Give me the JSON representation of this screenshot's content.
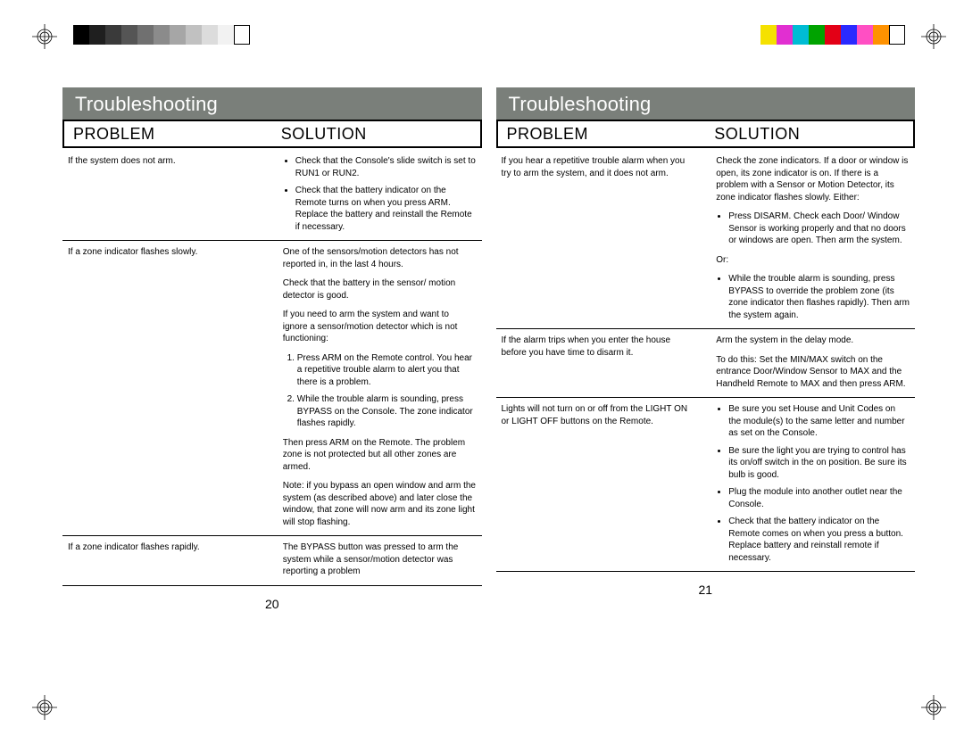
{
  "registration_mark": {
    "stroke": "#000000"
  },
  "grayscale_bar": [
    "#000000",
    "#1f1f1f",
    "#3a3a3a",
    "#555555",
    "#707070",
    "#8b8b8b",
    "#a6a6a6",
    "#c1c1c1",
    "#dcdcdc",
    "#f2f2f2",
    "#ffffff"
  ],
  "color_bar": [
    "#f5e100",
    "#e12fd1",
    "#00bcd4",
    "#00a300",
    "#e30016",
    "#2a2aff",
    "#ff4fc3",
    "#ff9200",
    "#ffffff"
  ],
  "pages": [
    {
      "section_title": "Troubleshooting",
      "col_problem": "PROBLEM",
      "col_solution": "SOLUTION",
      "page_number": "20",
      "rows": [
        {
          "problem": "If the system does not arm.",
          "solution_bullets": [
            "Check that the Console's slide switch is set to RUN1 or RUN2.",
            "Check that the battery indicator on the Remote turns on when you press ARM. Replace the battery and reinstall the Remote if necessary."
          ]
        },
        {
          "problem": "If a zone indicator flashes slowly.",
          "solution_paras": [
            "One of the sensors/motion detectors has not reported in, in the last 4 hours.",
            "Check that the battery in the sensor/ motion detector is good.",
            "If you need to arm the system and want to ignore a sensor/motion detector which is not functioning:"
          ],
          "solution_ol": [
            "Press ARM on the Remote control. You hear a repetitive trouble alarm to alert you that there is a problem.",
            "While the trouble alarm is sounding, press BYPASS on the Console. The zone indicator flashes rapidly."
          ],
          "solution_post_paras": [
            "Then press ARM on the Remote. The problem zone is not protected but all other zones are armed.",
            "Note: if you bypass an open window and arm the system (as described above) and later close the window, that zone will now arm and its zone light will stop flashing."
          ]
        },
        {
          "problem": "If a zone indicator flashes rapidly.",
          "solution_paras": [
            "The BYPASS button was pressed to arm the system while a sensor/motion detector was reporting a problem"
          ]
        }
      ]
    },
    {
      "section_title": "Troubleshooting",
      "col_problem": "PROBLEM",
      "col_solution": "SOLUTION",
      "page_number": "21",
      "rows": [
        {
          "problem": "If you hear a repetitive trouble alarm when you try to arm the system, and it does not arm.",
          "solution_paras": [
            "Check the zone indicators. If a door or window is open, its zone indicator is on. If there is a problem with a Sensor or Motion Detector, its zone indicator flashes slowly. Either:"
          ],
          "solution_bullets_a": [
            "Press DISARM. Check each Door/ Window Sensor is working properly and that no doors or windows are open. Then arm the system."
          ],
          "solution_mid": "Or:",
          "solution_bullets_b": [
            "While the trouble alarm is sounding, press BYPASS to override the problem zone (its zone indicator then flashes rapidly). Then arm the system again."
          ]
        },
        {
          "problem": "If the alarm trips when you enter the house before you have time to disarm it.",
          "solution_paras": [
            "Arm the system in the delay mode.",
            "To do this: Set the MIN/MAX switch on the entrance Door/Window Sensor to MAX and the Handheld Remote to MAX and then press ARM."
          ]
        },
        {
          "problem": "Lights will not turn on or off from the LIGHT ON or LIGHT OFF buttons on the Remote.",
          "solution_bullets": [
            "Be sure you set House and Unit Codes on the module(s) to the same letter and number as set on the Console.",
            "Be sure the light you are trying to control has its on/off switch in the on position. Be sure its bulb is good.",
            "Plug the module into another outlet near the Console.",
            "Check that the battery indicator on the Remote comes on when you press a button.  Replace battery and reinstall remote if necessary."
          ]
        }
      ]
    }
  ]
}
